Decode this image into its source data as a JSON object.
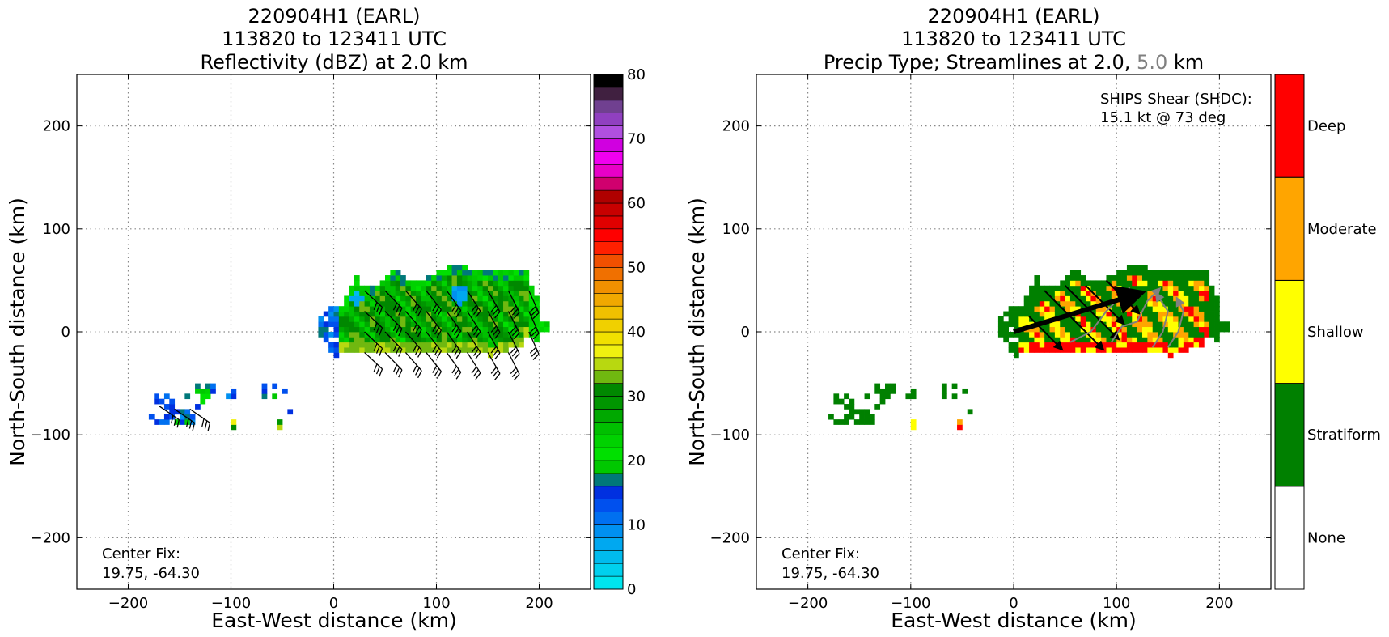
{
  "chart_data": [
    {
      "type": "heatmap",
      "title": [
        "220904H1 (EARL)",
        "113820 to 123411 UTC",
        "Reflectivity (dBZ) at 2.0 km"
      ],
      "xlabel": "East-West distance (km)",
      "ylabel": "North-South distance (km)",
      "xlim": [
        -250,
        250
      ],
      "ylim": [
        -250,
        250
      ],
      "xticks": [
        -200,
        -100,
        0,
        100,
        200
      ],
      "yticks": [
        -200,
        -100,
        0,
        100,
        200
      ],
      "grid": true,
      "annotation": [
        "Center Fix:",
        "19.75, -64.30"
      ],
      "colorbar": {
        "min": 0,
        "max": 80,
        "step": 2.5,
        "ticks": [
          0,
          10,
          20,
          30,
          40,
          50,
          60,
          70,
          80
        ],
        "colors": [
          "#00e5ee",
          "#00d0ee",
          "#00bbee",
          "#00a8f0",
          "#0090f0",
          "#0070f0",
          "#0050ee",
          "#0030e0",
          "#00787a",
          "#00c800",
          "#00e000",
          "#00d200",
          "#00c000",
          "#00a800",
          "#009600",
          "#008800",
          "#70b810",
          "#b8d810",
          "#f0f010",
          "#f0e000",
          "#f0d000",
          "#f0c000",
          "#f0a800",
          "#f09000",
          "#f07000",
          "#f05000",
          "#ff2000",
          "#ff0000",
          "#e00000",
          "#c80000",
          "#b00000",
          "#d0006e",
          "#e800c8",
          "#f000f0",
          "#d000e0",
          "#b050e0",
          "#9040c0",
          "#704090",
          "#402040",
          "#000000"
        ]
      },
      "echo_regions": [
        {
          "name": "main band",
          "x": [
            10,
            200
          ],
          "y": [
            -20,
            60
          ],
          "max_dbz": 45
        },
        {
          "name": "western fringe",
          "x": [
            -15,
            10
          ],
          "y": [
            -40,
            40
          ],
          "max_dbz": 20
        },
        {
          "name": "outer band",
          "x": [
            -190,
            -40
          ],
          "y": [
            -110,
            -55
          ],
          "max_dbz": 35
        }
      ]
    },
    {
      "type": "heatmap",
      "title": [
        "220904H1 (EARL)",
        "113820 to 123411 UTC"
      ],
      "title_line3": {
        "before": "Precip Type; Streamlines at 2.0, ",
        "gray": "5.0",
        "after": " km"
      },
      "xlabel": "East-West distance (km)",
      "ylabel": "North-South distance (km)",
      "xlim": [
        -250,
        250
      ],
      "ylim": [
        -250,
        250
      ],
      "xticks": [
        -200,
        -100,
        0,
        100,
        200
      ],
      "yticks": [
        -200,
        -100,
        0,
        100,
        200
      ],
      "grid": true,
      "annotation": [
        "Center Fix:",
        "19.75, -64.30"
      ],
      "shear_text": [
        "SHIPS Shear (SHDC):",
        "15.1 kt @ 73 deg"
      ],
      "shear_vector": {
        "speed_kt": 15.1,
        "direction_deg": 73
      },
      "colorbar": {
        "categories": [
          "None",
          "Stratiform",
          "Shallow",
          "Moderate",
          "Deep"
        ],
        "colors": [
          "#ffffff",
          "#008000",
          "#ffff00",
          "#ffa500",
          "#ff0000"
        ]
      }
    }
  ]
}
